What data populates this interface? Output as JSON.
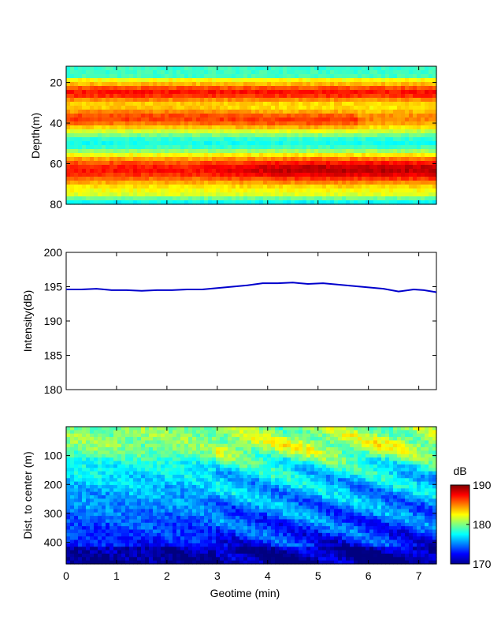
{
  "chart_data": [
    {
      "type": "heatmap",
      "ylabel": "Depth(m)",
      "ylim": [
        80,
        12
      ],
      "xlim": [
        0,
        7.35
      ],
      "yticks": [
        20,
        40,
        60,
        80
      ],
      "xticks": [
        0,
        1,
        2,
        3,
        4,
        5,
        6,
        7
      ],
      "description_bands": [
        {
          "depth": 25,
          "level": "high"
        },
        {
          "depth": 38,
          "level": "high"
        },
        {
          "depth": 63,
          "level": "very high, strongest after 4 min"
        }
      ]
    },
    {
      "type": "line",
      "ylabel": "Intensity(dB)",
      "ylim": [
        180,
        200
      ],
      "yticks": [
        180,
        185,
        190,
        195,
        200
      ],
      "xlim": [
        0,
        7.35
      ],
      "xticks": [
        0,
        1,
        2,
        3,
        4,
        5,
        6,
        7
      ],
      "series": [
        {
          "color": "#0000cc",
          "x": [
            0,
            0.3,
            0.6,
            0.9,
            1.2,
            1.5,
            1.8,
            2.1,
            2.4,
            2.7,
            3.0,
            3.3,
            3.6,
            3.9,
            4.2,
            4.5,
            4.8,
            5.1,
            5.4,
            5.7,
            6.0,
            6.3,
            6.6,
            6.9,
            7.1,
            7.35
          ],
          "y": [
            194.6,
            194.6,
            194.7,
            194.5,
            194.5,
            194.4,
            194.5,
            194.5,
            194.6,
            194.6,
            194.8,
            195.0,
            195.2,
            195.5,
            195.5,
            195.6,
            195.4,
            195.5,
            195.3,
            195.1,
            194.9,
            194.7,
            194.3,
            194.6,
            194.5,
            194.2
          ]
        }
      ]
    },
    {
      "type": "heatmap",
      "xlabel": "Geotime (min)",
      "ylabel": "Dist. to center (m)",
      "ylim": [
        475,
        0
      ],
      "yticks": [
        100,
        200,
        300,
        400
      ],
      "xlim": [
        0,
        7.35
      ],
      "xticks": [
        0,
        1,
        2,
        3,
        4,
        5,
        6,
        7
      ],
      "colorbar": {
        "label": "dB",
        "range": [
          170,
          190
        ],
        "ticks": [
          170,
          180,
          190
        ],
        "colormap": "jet"
      }
    }
  ]
}
